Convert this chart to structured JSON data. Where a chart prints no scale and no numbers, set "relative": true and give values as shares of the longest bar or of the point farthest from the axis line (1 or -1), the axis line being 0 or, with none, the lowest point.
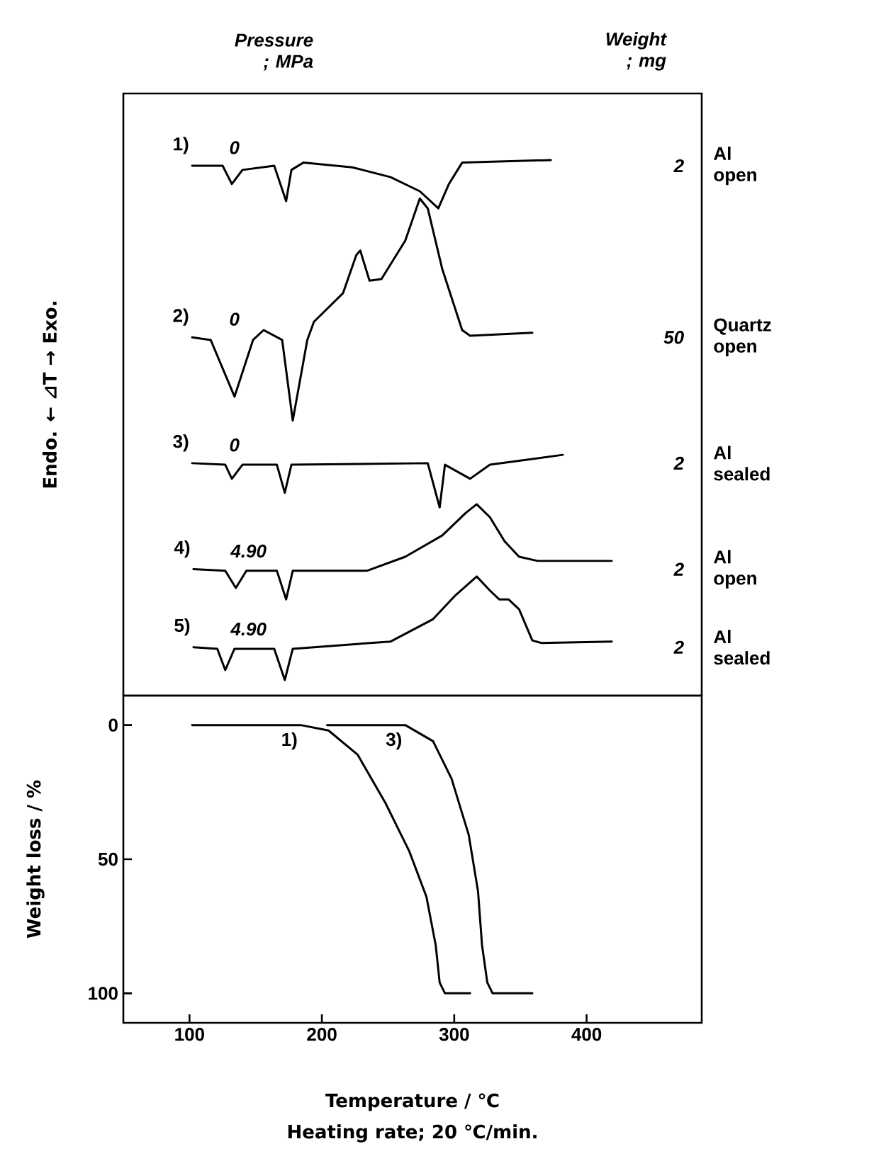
{
  "chart_data": [
    {
      "type": "line",
      "relative": true,
      "xlim": [
        50,
        487
      ],
      "ylabel": "Endo. ← ⊿T → Exo.",
      "series": [
        {
          "name": "1)",
          "color": "#000000",
          "x": [
            102,
            125,
            132,
            140,
            164,
            173,
            177,
            186,
            223,
            252,
            274,
            288,
            296,
            306,
            373
          ],
          "values": [
            0.989,
            0.989,
            0.954,
            0.981,
            0.989,
            0.921,
            0.981,
            0.995,
            0.986,
            0.967,
            0.94,
            0.907,
            0.954,
            0.995,
            1.0
          ]
        },
        {
          "name": "2)",
          "color": "#000000",
          "x": [
            102,
            116,
            134,
            148,
            156,
            170,
            178,
            189,
            194,
            216,
            226,
            229,
            236,
            245,
            263,
            274,
            280,
            291,
            306,
            312,
            359
          ],
          "values": [
            0.659,
            0.654,
            0.545,
            0.654,
            0.673,
            0.654,
            0.499,
            0.654,
            0.689,
            0.744,
            0.817,
            0.826,
            0.768,
            0.771,
            0.845,
            0.926,
            0.907,
            0.79,
            0.673,
            0.662,
            0.668
          ]
        },
        {
          "name": "3)",
          "color": "#000000",
          "x": [
            102,
            127,
            132,
            140,
            166,
            172,
            177,
            280,
            289,
            293,
            312,
            327,
            382
          ],
          "values": [
            0.417,
            0.414,
            0.387,
            0.414,
            0.414,
            0.36,
            0.414,
            0.417,
            0.332,
            0.414,
            0.387,
            0.414,
            0.433
          ]
        },
        {
          "name": "4)",
          "color": "#000000",
          "x": [
            103,
            127,
            135,
            143,
            166,
            173,
            178,
            234,
            263,
            291,
            309,
            317,
            327,
            338,
            349,
            363,
            419
          ],
          "values": [
            0.213,
            0.21,
            0.177,
            0.21,
            0.21,
            0.155,
            0.21,
            0.21,
            0.237,
            0.278,
            0.322,
            0.338,
            0.313,
            0.267,
            0.237,
            0.229,
            0.229
          ]
        },
        {
          "name": "5)",
          "color": "#000000",
          "x": [
            103,
            121,
            127,
            134,
            164,
            172,
            178,
            252,
            284,
            301,
            317,
            327,
            334,
            341,
            349,
            359,
            366,
            419
          ],
          "values": [
            0.063,
            0.06,
            0.019,
            0.06,
            0.06,
            0.0,
            0.06,
            0.074,
            0.117,
            0.163,
            0.199,
            0.172,
            0.155,
            0.155,
            0.136,
            0.076,
            0.071,
            0.074
          ]
        }
      ],
      "annotations": [
        "Pressure ; MPa",
        "Weight ; mg",
        "0",
        "2",
        "Al open",
        "0",
        "50",
        "Quartz open",
        "0",
        "2",
        "Al sealed",
        "4.90",
        "2",
        "Al open",
        "4.90",
        "2",
        "Al sealed"
      ]
    },
    {
      "type": "line",
      "xlim": [
        50,
        487
      ],
      "xticks": [
        100,
        200,
        300,
        400
      ],
      "ylim": [
        111,
        -11
      ],
      "yticks": [
        0,
        50,
        100
      ],
      "xlabel": "Temperature / ℃",
      "ylabel": "Weight loss / %",
      "series": [
        {
          "name": "1)",
          "color": "#000000",
          "x": [
            102,
            184,
            205,
            227,
            248,
            266,
            279,
            286,
            289,
            293,
            312
          ],
          "values": [
            0,
            0,
            2,
            11,
            29,
            47,
            64,
            82,
            96,
            100,
            100
          ]
        },
        {
          "name": "3)",
          "color": "#000000",
          "x": [
            204,
            263,
            284,
            298,
            311,
            318,
            321,
            325,
            329,
            359
          ],
          "values": [
            0,
            0,
            6,
            20,
            41,
            62,
            82,
            96,
            100,
            100
          ]
        }
      ],
      "annotations": [
        "Heating rate; 20 ℃/min."
      ]
    }
  ]
}
